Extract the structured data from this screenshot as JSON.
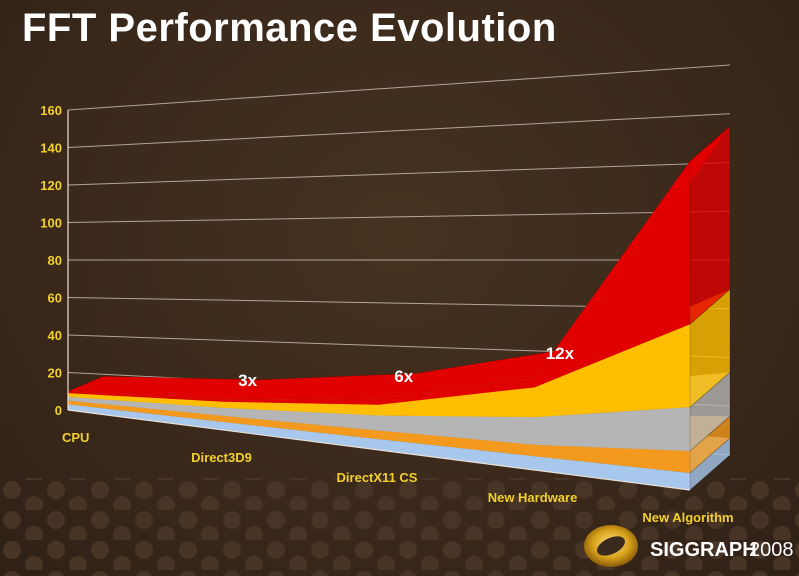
{
  "slide": {
    "title": "FFT Performance Evolution"
  },
  "logo": {
    "name": "SIGGRAPH",
    "year": "2008"
  },
  "colors": {
    "background": "#3b2a1e",
    "tick_text": "#f2d02b",
    "series_red": "#e10000",
    "series_gold": "#ffbf00",
    "series_gray": "#b5b5b5",
    "series_orange": "#f39a1e",
    "series_blue": "#a7c8ec"
  },
  "chart_data": {
    "type": "area",
    "title": "",
    "xlabel": "",
    "ylabel": "",
    "ylim": [
      0,
      160
    ],
    "yticks": [
      0,
      20,
      40,
      60,
      80,
      100,
      120,
      140,
      160
    ],
    "categories": [
      "CPU",
      "Direct3D9",
      "DirectX11 CS",
      "New Hardware",
      "New Algorithm"
    ],
    "stacked": true,
    "series": [
      {
        "color": "#a7c8ec",
        "values": [
          3,
          4,
          5,
          6,
          7
        ]
      },
      {
        "color": "#f39a1e",
        "values": [
          2,
          3,
          4,
          5,
          9
        ]
      },
      {
        "color": "#b5b5b5",
        "values": [
          2,
          4,
          7,
          12,
          18
        ]
      },
      {
        "color": "#ffbf00",
        "values": [
          2,
          3,
          5,
          13,
          34
        ]
      },
      {
        "color": "#e10000",
        "values": [
          1,
          1,
          3,
          4,
          67
        ]
      }
    ],
    "annotations": [
      {
        "text": "3x",
        "category": "Direct3D9"
      },
      {
        "text": "6x",
        "category": "DirectX11 CS"
      },
      {
        "text": "12x",
        "category": "New Hardware"
      }
    ],
    "grid": true,
    "legend": "none"
  }
}
